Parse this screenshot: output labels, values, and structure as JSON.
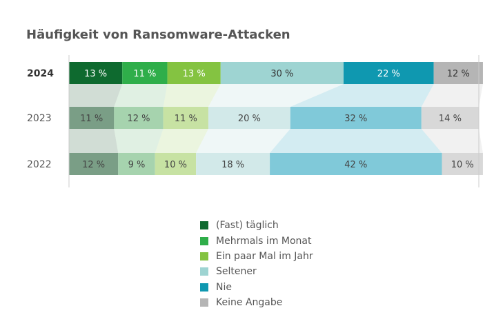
{
  "chart_data": {
    "type": "bar",
    "orientation": "horizontal",
    "stacked": true,
    "title": "Häufigkeit von Ransomware-Attacken",
    "categories": [
      "2024",
      "2023",
      "2022"
    ],
    "highlight_category": "2024",
    "value_suffix": " %",
    "xlim": [
      0,
      100
    ],
    "series": [
      {
        "name": "(Fast) täglich",
        "color": "#0e6a2f",
        "muted_color": "#7a9e86",
        "values": [
          13,
          11,
          12
        ]
      },
      {
        "name": "Mehrmals im Monat",
        "color": "#2fae4a",
        "muted_color": "#a6d3ae",
        "values": [
          11,
          12,
          9
        ]
      },
      {
        "name": "Ein paar Mal im Jahr",
        "color": "#84c341",
        "muted_color": "#c7e2a3",
        "values": [
          13,
          11,
          10
        ]
      },
      {
        "name": "Seltener",
        "color": "#9ed4d2",
        "muted_color": "#d2e9e9",
        "values": [
          30,
          20,
          18
        ]
      },
      {
        "name": "Nie",
        "color": "#0f98b0",
        "muted_color": "#80c9d9",
        "values": [
          22,
          32,
          42
        ]
      },
      {
        "name": "Keine Angabe",
        "color": "#b5b5b5",
        "muted_color": "#d8d8d8",
        "values": [
          12,
          14,
          10
        ]
      }
    ]
  }
}
